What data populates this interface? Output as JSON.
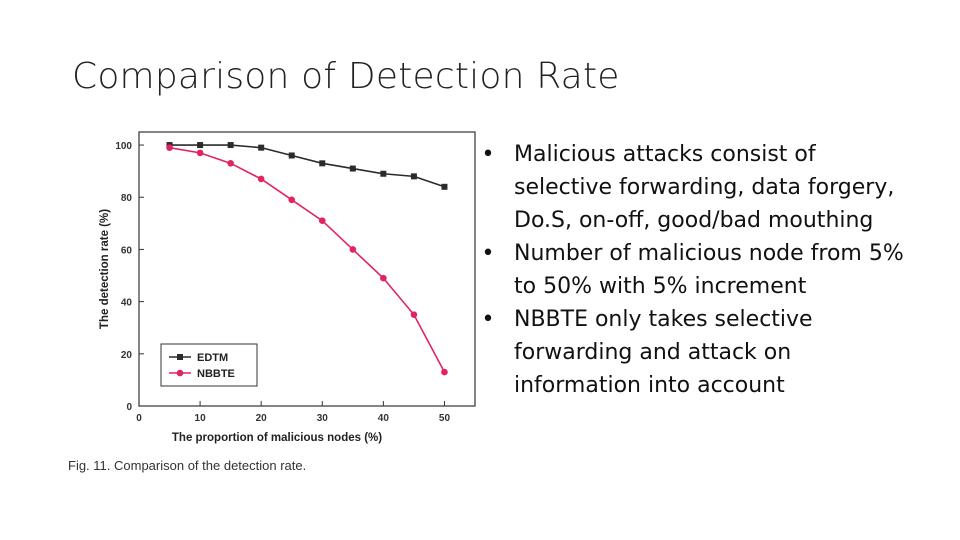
{
  "slide": {
    "title": "Comparison of Detection Rate"
  },
  "bullets": [
    {
      "marker": "•",
      "text": "Malicious attacks consist of selective forwarding, data forgery, Do.S, on-off, good/bad mouthing"
    },
    {
      "marker": "•",
      "text": "Number of malicious node from 5% to 50% with 5% increment"
    },
    {
      "marker": "•",
      "text": "NBBTE only takes selective forwarding and attack on information into account"
    }
  ],
  "figure": {
    "caption": "Fig. 11. Comparison of the detection rate."
  },
  "chart_data": {
    "type": "line",
    "title": "",
    "xlabel": "The proportion of malicious nodes (%)",
    "ylabel": "The detection rate (%)",
    "xlim": [
      0,
      55
    ],
    "ylim": [
      0,
      105
    ],
    "xticks": [
      0,
      10,
      20,
      30,
      40,
      50
    ],
    "yticks": [
      0,
      20,
      40,
      60,
      80,
      100
    ],
    "grid": false,
    "legend_position": "bottom-left",
    "series": [
      {
        "name": "EDTM",
        "color": "#2b2b2b",
        "marker": "square",
        "x": [
          5,
          10,
          15,
          20,
          25,
          30,
          35,
          40,
          45,
          50
        ],
        "y": [
          100,
          100,
          100,
          99,
          96,
          93,
          91,
          89,
          88,
          84
        ]
      },
      {
        "name": "NBBTE",
        "color": "#e0245e",
        "marker": "circle",
        "x": [
          5,
          10,
          15,
          20,
          25,
          30,
          35,
          40,
          45,
          50
        ],
        "y": [
          99,
          97,
          93,
          87,
          79,
          71,
          60,
          49,
          35,
          13
        ]
      }
    ]
  }
}
